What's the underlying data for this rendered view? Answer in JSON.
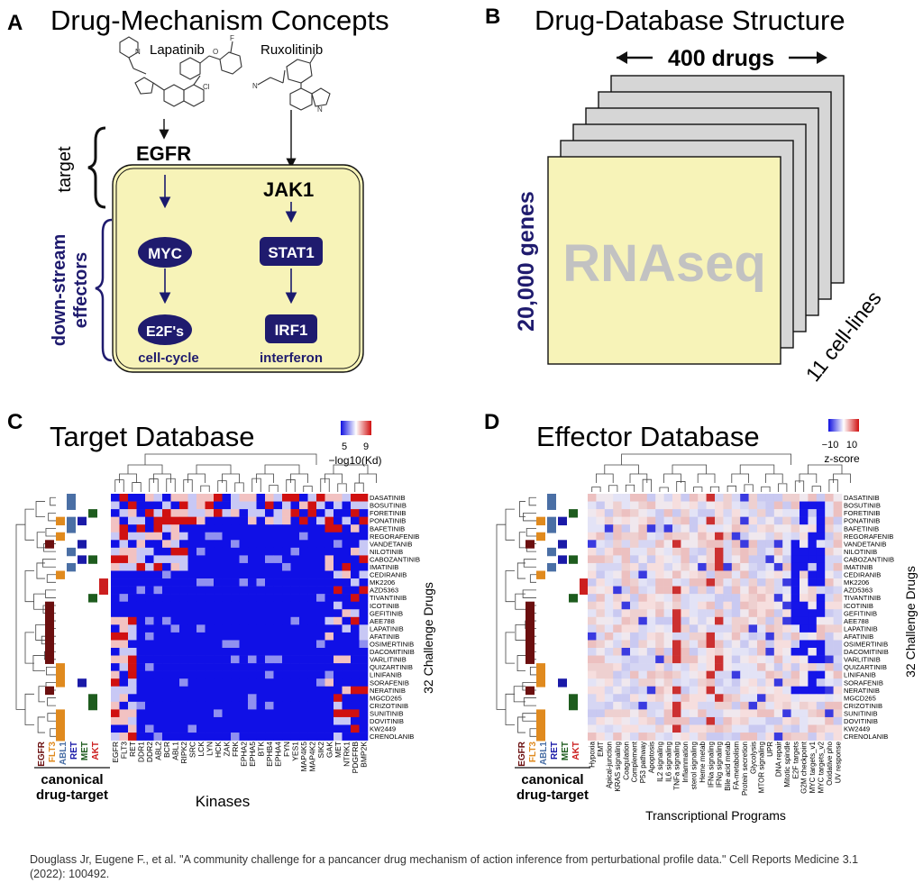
{
  "panels": {
    "A": {
      "letter": "A",
      "title": "Drug-Mechanism Concepts",
      "drug_left": "Lapatinib",
      "drug_right": "Ruxolitinib",
      "target_left": "EGFR",
      "target_right": "JAK1",
      "bracket_target": "target",
      "bracket_effectors_1": "down-stream",
      "bracket_effectors_2": "effectors",
      "node_myc": "MYC",
      "node_stat1": "STAT1",
      "node_e2f": "E2F's",
      "node_irf1": "IRF1",
      "caption_left": "cell-cycle",
      "caption_right": "interferon"
    },
    "B": {
      "letter": "B",
      "title": "Drug-Database Structure",
      "drugs_label": "400 drugs",
      "genes_label": "20,000 genes",
      "rnaseq_label": "RNAseq",
      "cell_lines_label": "11 cell-lines"
    },
    "C": {
      "letter": "C",
      "title": "Target Database",
      "legend_ticks": [
        "5",
        "9"
      ],
      "legend_label": "−log10(Kd)",
      "x_axis_label": "Kinases",
      "kinases": [
        "EGFR",
        "FLT3",
        "RET",
        "DDR1",
        "DDR2",
        "ABL2",
        "BCR",
        "ABL1",
        "RIPK2",
        "SRC",
        "LCK",
        "LYN",
        "HCK",
        "ZAK",
        "FRK",
        "EPHA2",
        "EPHA5",
        "BTK",
        "EPHB4",
        "EPHA4",
        "FYN",
        "YES1",
        "MAP4K5",
        "MAP4K2",
        "SIK2",
        "GAK",
        "MET",
        "NTRK1",
        "PDGFRB",
        "BMP2K"
      ]
    },
    "D": {
      "letter": "D",
      "title": "Effector Database",
      "legend_ticks": [
        "−10",
        "10"
      ],
      "legend_label": "z-score",
      "x_axis_label": "Transcriptional Programs",
      "programs": [
        "Hypoxia",
        "EMT",
        "Apical-junction",
        "KRAS signaling",
        "Coagulation",
        "Complement",
        "P53 pathway",
        "Apoptosis",
        "IL2 signaling",
        "IL6 signaling",
        "TNFa signaling",
        "Inflammation",
        "sterol signaling",
        "Heme metab",
        "IFNa signaling",
        "IFNg signaling",
        "Bile acid metab",
        "FA-metabolism",
        "Protein secretion",
        "Glycolysis",
        "MTOR signaling",
        "UPR",
        "DNA repair",
        "Mitotic spindle",
        "E2F targets",
        "G2M checkpoint",
        "MYC targets_v1",
        "MYC targets_v2",
        "Oxidative pho",
        "UV response"
      ]
    }
  },
  "shared": {
    "y_axis_label": "32 Challenge Drugs",
    "canonical_label_1": "canonical",
    "canonical_label_2": "drug-target",
    "canonical_targets": [
      "EGFR",
      "FLT3",
      "ABL1",
      "RET",
      "MET",
      "AKT"
    ],
    "canonical_colors": [
      "#6b0f0f",
      "#e08a1e",
      "#4a6fa5",
      "#1a1aa8",
      "#1e5c1e",
      "#cc1f1f"
    ],
    "drugs": [
      "DASATINIB",
      "BOSUTINIB",
      "FORETINIB",
      "PONATINIB",
      "BAFETINIB",
      "REGORAFENIB",
      "VANDETANIB",
      "NILOTINIB",
      "CABOZANTINIB",
      "IMATINIB",
      "CEDIRANIB",
      "MK2206",
      "AZD5363",
      "TIVANTINIB",
      "ICOTINIB",
      "GEFITINIB",
      "AEE788",
      "LAPATINIB",
      "AFATINIB",
      "OSIMERTINIB",
      "DACOMITINIB",
      "VARLITINIB",
      "QUIZARTINIB",
      "LINIFANIB",
      "SORAFENIB",
      "NERATINIB",
      "MGCD265",
      "CRIZOTINIB",
      "SUNITINIB",
      "DOVITINIB",
      "KW2449",
      "CRENOLANIB"
    ]
  },
  "citation": "Douglass Jr, Eugene F., et al. \"A community challenge for a pancancer drug mechanism of action inference from perturbational profile data.\" Cell Reports Medicine 3.1 (2022): 100492."
}
